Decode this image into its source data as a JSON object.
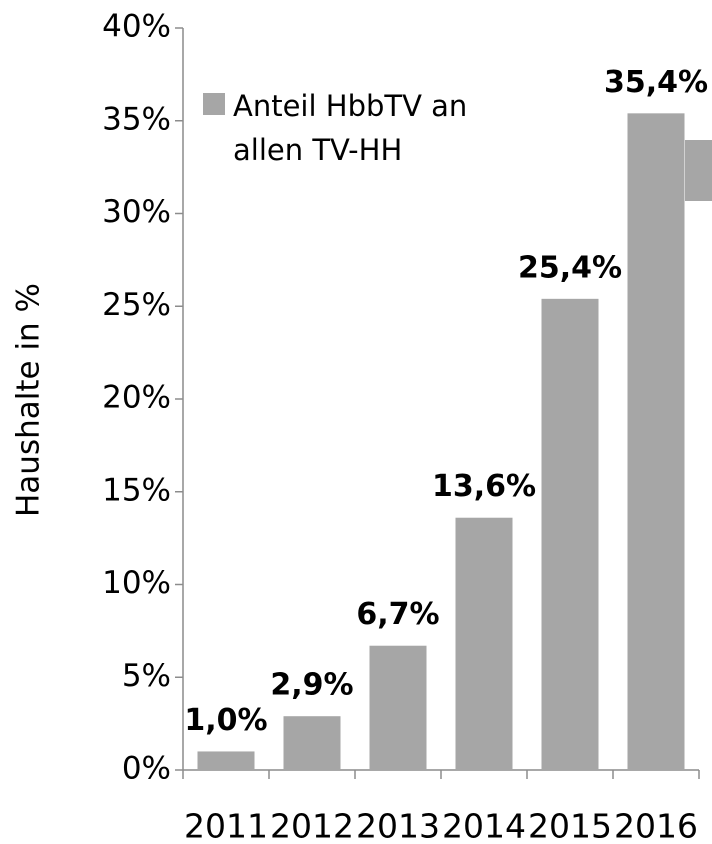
{
  "chart_data": {
    "type": "bar",
    "y_label": "Haushalte in %",
    "categories": [
      "2011",
      "2012",
      "2013",
      "2014",
      "2015",
      "2016"
    ],
    "series": [
      {
        "name": "Anteil HbbTV an allen TV-HH",
        "color": "#a6a6a6",
        "values": [
          1.0,
          2.9,
          6.7,
          13.6,
          25.4,
          35.4
        ],
        "value_labels": [
          "1,0%",
          "2,9%",
          "6,7%",
          "13,6%",
          "25,4%",
          "35,4%"
        ]
      }
    ],
    "ylim": [
      0,
      40
    ],
    "yticks": [
      {
        "value": 0,
        "label": "0%"
      },
      {
        "value": 5,
        "label": "5%"
      },
      {
        "value": 10,
        "label": "10%"
      },
      {
        "value": 15,
        "label": "15%"
      },
      {
        "value": 20,
        "label": "20%"
      },
      {
        "value": 25,
        "label": "25%"
      },
      {
        "value": 30,
        "label": "30%"
      },
      {
        "value": 35,
        "label": "35%"
      },
      {
        "value": 40,
        "label": "40%"
      }
    ],
    "legend": "top-left"
  }
}
